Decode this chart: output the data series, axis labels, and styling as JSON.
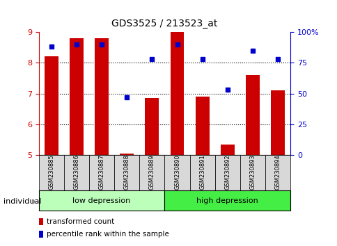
{
  "title": "GDS3525 / 213523_at",
  "samples": [
    "GSM230885",
    "GSM230886",
    "GSM230887",
    "GSM230888",
    "GSM230889",
    "GSM230890",
    "GSM230891",
    "GSM230892",
    "GSM230893",
    "GSM230894"
  ],
  "transformed_count": [
    8.2,
    8.8,
    8.8,
    5.05,
    6.85,
    9.0,
    6.9,
    5.35,
    7.6,
    7.1
  ],
  "percentile_rank": [
    88,
    90,
    90,
    47,
    78,
    90,
    78,
    53,
    85,
    78
  ],
  "ylim": [
    5,
    9
  ],
  "yticks": [
    5,
    6,
    7,
    8,
    9
  ],
  "right_yticks": [
    0,
    25,
    50,
    75,
    100
  ],
  "bar_color": "#cc0000",
  "dot_color": "#0000cc",
  "group1_label": "low depression",
  "group2_label": "high depression",
  "group1_color": "#bbffbb",
  "group2_color": "#44ee44",
  "group1_samples": 5,
  "group2_samples": 5,
  "legend_bar_label": "transformed count",
  "legend_dot_label": "percentile rank within the sample",
  "tick_label_color_left": "#cc0000",
  "tick_label_color_right": "#0000cc"
}
